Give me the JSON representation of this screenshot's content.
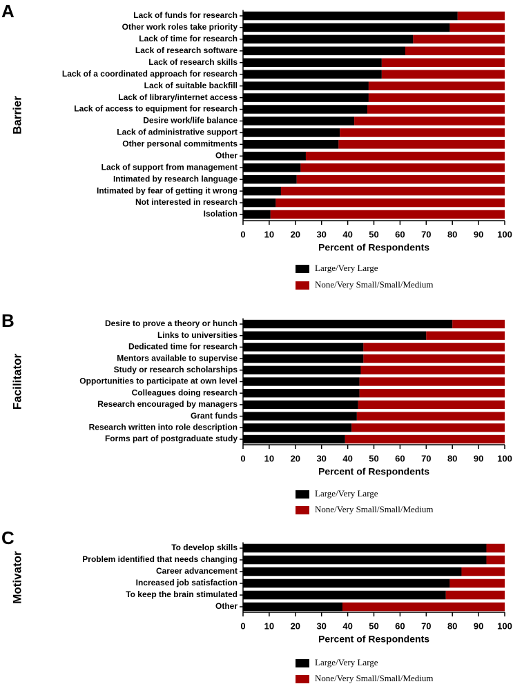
{
  "chart_data": [
    {
      "type": "bar",
      "panel_label": "A",
      "y_label": "Barrier",
      "x_label": "Percent of Respondents",
      "categories": [
        "Lack of funds for research",
        "Other work roles take priority",
        "Lack of time for research",
        "Lack of research software",
        "Lack of research skills",
        "Lack of a coordinated approach for research",
        "Lack of suitable backfill",
        "Lack of library/internet access",
        "Lack of access to equipment for research",
        "Desire work/life balance",
        "Lack of administrative support",
        "Other personal commitments",
        "Other",
        "Lack of support from management",
        "Intimated by research language",
        "Intimated by fear of getting it wrong",
        "Not interested in research",
        "Isolation"
      ],
      "series": [
        {
          "name": "Large/Very Large",
          "color": "#000000",
          "values": [
            82,
            79,
            65,
            62,
            53,
            53,
            48,
            48,
            47.5,
            42.5,
            37,
            36.5,
            24,
            22,
            20.5,
            14.5,
            12.5,
            10.5
          ]
        },
        {
          "name": "None/Very Small/Small/Medium",
          "color": "#a50000",
          "values": [
            18,
            21,
            35,
            38,
            47,
            47,
            52,
            52,
            52.5,
            57.5,
            63,
            63.5,
            76,
            78,
            79.5,
            85.5,
            87.5,
            89.5
          ]
        }
      ],
      "xlim": [
        0,
        100
      ],
      "xticks": [
        0,
        10,
        20,
        30,
        40,
        50,
        60,
        70,
        80,
        90,
        100
      ]
    },
    {
      "type": "bar",
      "panel_label": "B",
      "y_label": "Facilitator",
      "x_label": "Percent of Respondents",
      "categories": [
        "Desire to prove a theory or hunch",
        "Links to universities",
        "Dedicated time for research",
        "Mentors available to supervise",
        "Study or research scholarships",
        "Opportunities to participate at own level",
        "Colleagues doing research",
        "Research encouraged by managers",
        "Grant funds",
        "Research written into role description",
        "Forms part of postgraduate study"
      ],
      "series": [
        {
          "name": "Large/Very Large",
          "color": "#000000",
          "values": [
            80,
            70,
            46,
            46,
            45,
            44.5,
            44.5,
            44,
            43.5,
            41.5,
            39
          ]
        },
        {
          "name": "None/Very Small/Small/Medium",
          "color": "#a50000",
          "values": [
            20,
            30,
            54,
            54,
            55,
            55.5,
            55.5,
            56,
            56.5,
            58.5,
            61
          ]
        }
      ],
      "xlim": [
        0,
        100
      ],
      "xticks": [
        0,
        10,
        20,
        30,
        40,
        50,
        60,
        70,
        80,
        90,
        100
      ]
    },
    {
      "type": "bar",
      "panel_label": "C",
      "y_label": "Motivator",
      "x_label": "Percent of Respondents",
      "categories": [
        "To develop skills",
        "Problem identified that needs changing",
        "Career advancement",
        "Increased job satisfaction",
        "To keep the brain stimulated",
        "Other"
      ],
      "series": [
        {
          "name": "Large/Very Large",
          "color": "#000000",
          "values": [
            93,
            93,
            83.5,
            79,
            77.5,
            38
          ]
        },
        {
          "name": "None/Very Small/Small/Medium",
          "color": "#a50000",
          "values": [
            7,
            7,
            16.5,
            21,
            22.5,
            62
          ]
        }
      ],
      "xlim": [
        0,
        100
      ],
      "xticks": [
        0,
        10,
        20,
        30,
        40,
        50,
        60,
        70,
        80,
        90,
        100
      ]
    }
  ]
}
